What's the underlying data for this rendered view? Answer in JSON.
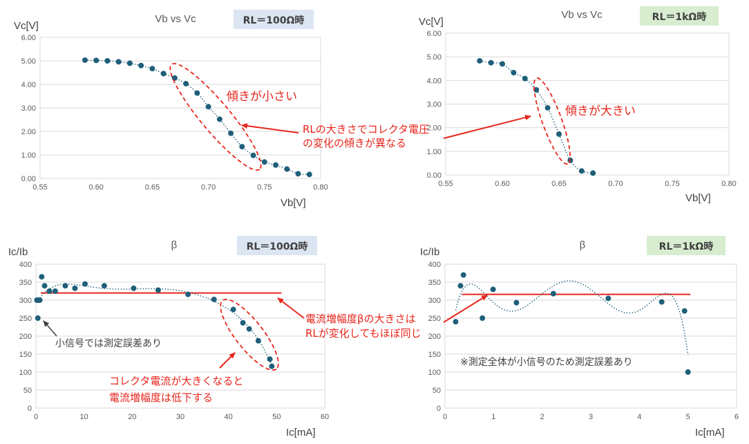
{
  "colors": {
    "marker": "#1F5F7A",
    "trend": "#1F5F7A",
    "annotation": "#E8251B",
    "grid": "#D9D9D9",
    "axis_text": "#595959",
    "badge_blue": "#DCE6F2",
    "badge_green": "#D8EDD0"
  },
  "chart_data": [
    {
      "id": "vbvc100",
      "type": "scatter",
      "title": "Vb vs Vc",
      "badge": "RL＝100Ω時",
      "badge_color": "badge_blue",
      "xlabel": "Vb[V]",
      "ylabel": "Vc[V]",
      "xlim": [
        0.55,
        0.8
      ],
      "ylim": [
        0,
        6
      ],
      "xticks": [
        0.55,
        0.6,
        0.65,
        0.7,
        0.75,
        0.8
      ],
      "yticks": [
        0,
        1,
        2,
        3,
        4,
        5,
        6
      ],
      "xdec": 2,
      "ydec": 2,
      "grid": "horizontal",
      "trendline": "dotted",
      "x": [
        0.59,
        0.6,
        0.61,
        0.62,
        0.63,
        0.64,
        0.65,
        0.66,
        0.67,
        0.68,
        0.69,
        0.7,
        0.71,
        0.72,
        0.73,
        0.74,
        0.75,
        0.76,
        0.77,
        0.78,
        0.79
      ],
      "y": [
        5.03,
        5.02,
        5.0,
        4.96,
        4.9,
        4.8,
        4.67,
        4.46,
        4.27,
        4.03,
        3.63,
        3.05,
        2.52,
        1.92,
        1.35,
        0.98,
        0.7,
        0.57,
        0.4,
        0.2,
        0.17
      ]
    },
    {
      "id": "vbvc1k",
      "type": "scatter",
      "title": "Vb vs Vc",
      "badge": "RL＝1kΩ時",
      "badge_color": "badge_green",
      "xlabel": "Vb[V]",
      "ylabel": "Vc[V]",
      "xlim": [
        0.55,
        0.8
      ],
      "ylim": [
        0,
        6
      ],
      "xticks": [
        0.55,
        0.6,
        0.65,
        0.7,
        0.75,
        0.8
      ],
      "yticks": [
        0,
        1,
        2,
        3,
        4,
        5,
        6
      ],
      "xdec": 2,
      "ydec": 2,
      "grid": "horizontal",
      "trendline": "dotted",
      "x": [
        0.58,
        0.59,
        0.6,
        0.61,
        0.62,
        0.63,
        0.64,
        0.65,
        0.66,
        0.67,
        0.68
      ],
      "y": [
        4.83,
        4.75,
        4.7,
        4.33,
        4.08,
        3.6,
        2.84,
        1.73,
        0.62,
        0.17,
        0.08
      ]
    },
    {
      "id": "beta100",
      "type": "scatter",
      "title": "β",
      "badge": "RL＝100Ω時",
      "badge_color": "badge_blue",
      "xlabel": "Ic[mA]",
      "ylabel": "Ic/Ib",
      "xlim": [
        0,
        60
      ],
      "ylim": [
        0,
        400
      ],
      "xticks": [
        0,
        10,
        20,
        30,
        40,
        50,
        60
      ],
      "yticks": [
        0,
        50,
        100,
        150,
        200,
        250,
        300,
        350,
        400
      ],
      "xdec": 0,
      "ydec": 0,
      "grid": "horizontal",
      "trendline": "dotted",
      "reference_line": {
        "x": [
          1,
          51
        ],
        "y": 320
      },
      "x": [
        0.2,
        0.4,
        0.6,
        0.8,
        1.2,
        1.8,
        2.8,
        4.0,
        6.1,
        8.1,
        10.2,
        14.2,
        20.3,
        25.4,
        31.6,
        37.0,
        41.0,
        43.0,
        44.3,
        46.2,
        48.6,
        49.0
      ],
      "y": [
        300,
        250,
        300,
        300,
        365,
        340,
        325,
        325,
        340,
        333,
        345,
        340,
        333,
        328,
        316,
        302,
        274,
        237,
        220,
        187,
        136,
        116
      ]
    },
    {
      "id": "beta1k",
      "type": "scatter",
      "title": "β",
      "badge": "RL＝1kΩ時",
      "badge_color": "badge_green",
      "xlabel": "Ic[mA]",
      "ylabel": "Ic/Ib",
      "xlim": [
        0,
        6
      ],
      "ylim": [
        0,
        400
      ],
      "xticks": [
        0,
        1,
        2,
        3,
        4,
        5,
        6
      ],
      "yticks": [
        0,
        50,
        100,
        150,
        200,
        250,
        300,
        350,
        400
      ],
      "xdec": 0,
      "ydec": 0,
      "grid": "horizontal",
      "trendline": "dotted",
      "reference_line": {
        "x": [
          0.35,
          5.05
        ],
        "y": 316
      },
      "x": [
        0.22,
        0.32,
        0.38,
        0.77,
        0.99,
        1.47,
        2.23,
        3.36,
        4.46,
        4.93,
        5.0
      ],
      "y": [
        240,
        340,
        370,
        250,
        330,
        293,
        318,
        305,
        295,
        270,
        100
      ]
    }
  ],
  "annotations": {
    "slope_small": "傾きが小さい",
    "slope_large": "傾きが大きい",
    "rl_note_1": "RLの大きさでコレクタ電圧",
    "rl_note_2": "の変化の傾きが異なる",
    "beta_note_1": "電流増幅度βの大きさは",
    "beta_note_2": "RLが変化してもほぼ同じ",
    "small_signal": "小信号では測定誤差あり",
    "collector_note_1": "コレクタ電流が大きくなると",
    "collector_note_2": "電流増幅度は低下する",
    "whole_small": "※測定全体が小信号のため測定誤差あり"
  }
}
